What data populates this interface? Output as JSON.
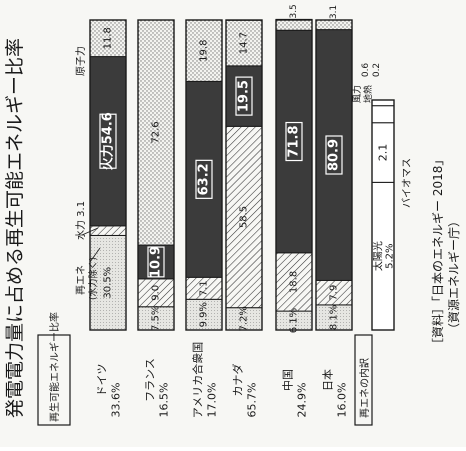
{
  "title": "発電電力量に占める再生可能エネルギー比率",
  "source_line1": "［資料］「日本のエネルギー 2018」",
  "source_line2": "（資源エネルギー庁）",
  "row_header": "再生可能エネルギー比率",
  "breakdown_header": "再エネの内訳",
  "legend": {
    "re_ex_hydro_line1": "再エネ",
    "re_ex_hydro_line2": "(水力除く)",
    "hydro": "水力 3.1",
    "nuclear": "原子力",
    "biomass": "バイオマス",
    "wind": "風力",
    "geothermal": "地熱"
  },
  "fire_prefix": "火力",
  "colors": {
    "ink": "#1a1a1a",
    "paper": "#f7f7f4",
    "fossil": "#3b3b3b",
    "stipple": "#9a9a9a",
    "re_light": "#dcdcdc"
  },
  "chart_data": {
    "type": "bar",
    "stacked": true,
    "orientation": "horizontal",
    "xlim": [
      0,
      100
    ],
    "unit": "%",
    "categories": [
      "ドイツ",
      "フランス",
      "アメリカ合衆国",
      "カナダ",
      "中国",
      "日本"
    ],
    "renewable_share_labels": [
      "33.6%",
      "16.5%",
      "17.0%",
      "65.7%",
      "24.9%",
      "16.0%"
    ],
    "series": [
      {
        "name": "再エネ(水力除く)",
        "values": [
          30.5,
          7.5,
          9.9,
          7.2,
          6.1,
          8.1
        ]
      },
      {
        "name": "水力",
        "values": [
          3.1,
          9.0,
          7.1,
          58.5,
          18.8,
          7.9
        ]
      },
      {
        "name": "火力",
        "values": [
          54.6,
          10.9,
          63.2,
          19.5,
          71.8,
          80.9
        ]
      },
      {
        "name": "原子力",
        "values": [
          11.8,
          72.6,
          19.8,
          14.7,
          3.5,
          3.1
        ]
      }
    ],
    "bar_labels": [
      [
        "30.5%",
        "",
        "火力54.6",
        "11.8"
      ],
      [
        "7.5%",
        "9.0",
        "10.9",
        "72.6"
      ],
      [
        "9.9%",
        "7.1",
        "63.2",
        "19.8"
      ],
      [
        "7.2%",
        "58.5",
        "19.5",
        "14.7"
      ],
      [
        "6.1%",
        "18.8",
        "71.8",
        "3.5"
      ],
      [
        "8.1%",
        "7.9",
        "80.9",
        "3.1"
      ]
    ],
    "breakdown": [
      {
        "name": "太陽光",
        "value": 5.2,
        "label": "太陽光 5.2%"
      },
      {
        "name": "バイオマス",
        "value": 2.1,
        "label": "2.1"
      },
      {
        "name": "風力",
        "value": 0.6,
        "label": "0.6"
      },
      {
        "name": "地熱",
        "value": 0.2,
        "label": "0.2"
      }
    ]
  }
}
